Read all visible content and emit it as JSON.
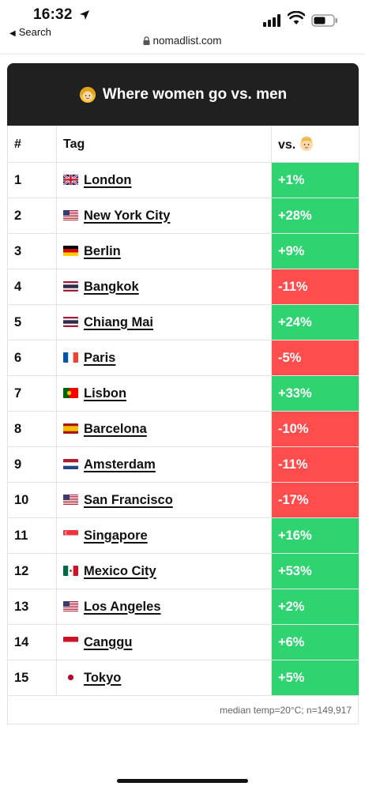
{
  "status": {
    "time": "16:32",
    "back_label": "Search"
  },
  "browser": {
    "domain": "nomadlist.com"
  },
  "card": {
    "title": "Where women go vs. men",
    "columns": {
      "rank": "#",
      "tag": "Tag",
      "vs": "vs."
    },
    "rows": [
      {
        "rank": "1",
        "city": "London",
        "flag": "gb",
        "value": "+1%",
        "sign": "pos"
      },
      {
        "rank": "2",
        "city": "New York City",
        "flag": "us",
        "value": "+28%",
        "sign": "pos"
      },
      {
        "rank": "3",
        "city": "Berlin",
        "flag": "de",
        "value": "+9%",
        "sign": "pos"
      },
      {
        "rank": "4",
        "city": "Bangkok",
        "flag": "th",
        "value": "-11%",
        "sign": "neg"
      },
      {
        "rank": "5",
        "city": "Chiang Mai",
        "flag": "th",
        "value": "+24%",
        "sign": "pos"
      },
      {
        "rank": "6",
        "city": "Paris",
        "flag": "fr",
        "value": "-5%",
        "sign": "neg"
      },
      {
        "rank": "7",
        "city": "Lisbon",
        "flag": "pt",
        "value": "+33%",
        "sign": "pos"
      },
      {
        "rank": "8",
        "city": "Barcelona",
        "flag": "es",
        "value": "-10%",
        "sign": "neg"
      },
      {
        "rank": "9",
        "city": "Amsterdam",
        "flag": "nl",
        "value": "-11%",
        "sign": "neg"
      },
      {
        "rank": "10",
        "city": "San Francisco",
        "flag": "us",
        "value": "-17%",
        "sign": "neg"
      },
      {
        "rank": "11",
        "city": "Singapore",
        "flag": "sg",
        "value": "+16%",
        "sign": "pos"
      },
      {
        "rank": "12",
        "city": "Mexico City",
        "flag": "mx",
        "value": "+53%",
        "sign": "pos"
      },
      {
        "rank": "13",
        "city": "Los Angeles",
        "flag": "us",
        "value": "+2%",
        "sign": "pos"
      },
      {
        "rank": "14",
        "city": "Canggu",
        "flag": "id",
        "value": "+6%",
        "sign": "pos"
      },
      {
        "rank": "15",
        "city": "Tokyo",
        "flag": "jp",
        "value": "+5%",
        "sign": "pos"
      }
    ],
    "footer": "median temp=20°C; n=149,917"
  },
  "colors": {
    "positive": "#2fd471",
    "negative": "#ff4d4d",
    "header_bg": "#202020"
  },
  "icons": {
    "header_emoji": "woman-emoji-icon",
    "vs_emoji": "man-emoji-icon"
  }
}
